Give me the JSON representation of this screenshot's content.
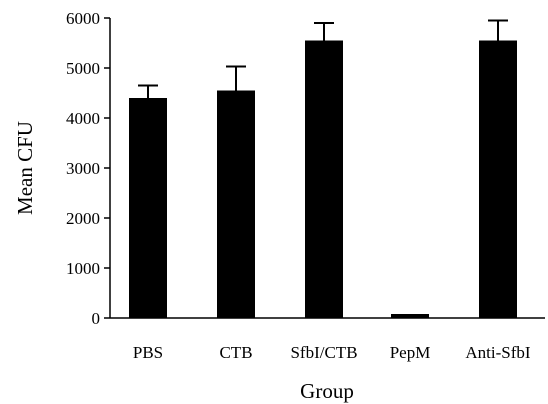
{
  "chart_data": {
    "type": "bar",
    "title": "",
    "xlabel": "Group",
    "ylabel": "Mean CFU",
    "categories": [
      "PBS",
      "CTB",
      "SfbI/CTB",
      "PepM",
      "Anti-SfbI"
    ],
    "values": [
      4400,
      4550,
      5550,
      80,
      5550
    ],
    "errors": [
      250,
      480,
      350,
      0,
      400
    ],
    "ylim": [
      0,
      6000
    ],
    "yticks": [
      "0",
      "1000",
      "2000",
      "3000",
      "4000",
      "5000",
      "6000"
    ],
    "grid": false,
    "bar_color": "#000000"
  }
}
